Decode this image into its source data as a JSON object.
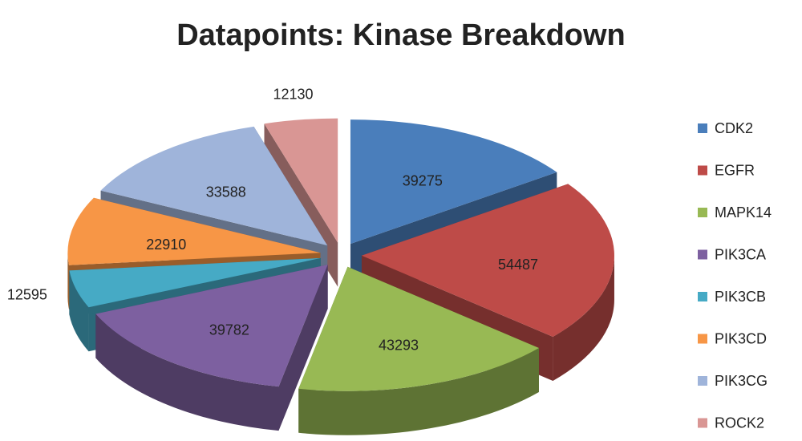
{
  "chart_data": {
    "type": "pie",
    "title": "Datapoints: Kinase Breakdown",
    "categories": [
      "CDK2",
      "EGFR",
      "MAPK14",
      "PIK3CA",
      "PIK3CB",
      "PIK3CD",
      "PIK3CG",
      "ROCK2"
    ],
    "values": [
      39275,
      54487,
      43293,
      39782,
      12595,
      22910,
      33588,
      12130
    ],
    "colors": [
      "#4a7ebb",
      "#be4b48",
      "#98b954",
      "#7d60a0",
      "#46aac5",
      "#f79646",
      "#9fb4da",
      "#d99694"
    ],
    "legend": "right"
  }
}
